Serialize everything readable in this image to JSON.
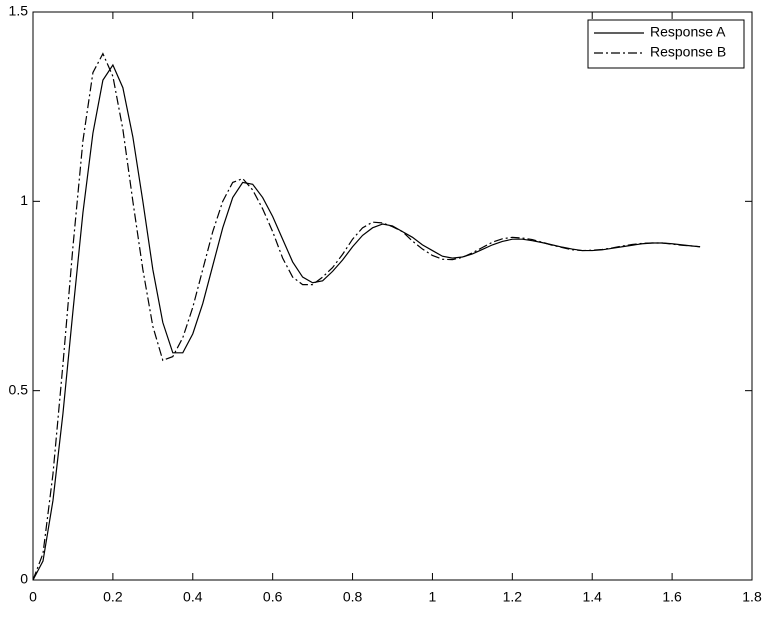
{
  "chart_data": {
    "type": "line",
    "x": [
      0,
      0.025,
      0.05,
      0.075,
      0.1,
      0.125,
      0.15,
      0.175,
      0.2,
      0.225,
      0.25,
      0.275,
      0.3,
      0.325,
      0.35,
      0.375,
      0.4,
      0.425,
      0.45,
      0.475,
      0.5,
      0.525,
      0.55,
      0.575,
      0.6,
      0.625,
      0.65,
      0.675,
      0.7,
      0.725,
      0.75,
      0.775,
      0.8,
      0.825,
      0.85,
      0.875,
      0.9,
      0.925,
      0.95,
      0.975,
      1,
      1.025,
      1.05,
      1.075,
      1.1,
      1.125,
      1.15,
      1.175,
      1.2,
      1.225,
      1.25,
      1.275,
      1.3,
      1.325,
      1.35,
      1.375,
      1.4,
      1.425,
      1.45,
      1.475,
      1.5,
      1.525,
      1.55,
      1.575,
      1.6,
      1.625,
      1.65,
      1.67
    ],
    "series": [
      {
        "name": "Response A",
        "color": "#000000",
        "linestyle": "solid",
        "values": [
          0,
          0.05,
          0.21,
          0.44,
          0.71,
          0.97,
          1.18,
          1.32,
          1.36,
          1.3,
          1.17,
          1.0,
          0.82,
          0.68,
          0.6,
          0.6,
          0.65,
          0.73,
          0.83,
          0.93,
          1.01,
          1.05,
          1.045,
          1.01,
          0.96,
          0.9,
          0.84,
          0.8,
          0.785,
          0.79,
          0.815,
          0.845,
          0.88,
          0.91,
          0.93,
          0.94,
          0.935,
          0.92,
          0.905,
          0.885,
          0.87,
          0.855,
          0.85,
          0.853,
          0.861,
          0.873,
          0.885,
          0.894,
          0.9,
          0.9,
          0.896,
          0.891,
          0.885,
          0.879,
          0.874,
          0.87,
          0.87,
          0.872,
          0.876,
          0.88,
          0.884,
          0.888,
          0.89,
          0.89,
          0.888,
          0.885,
          0.882,
          0.88
        ]
      },
      {
        "name": "Response B",
        "color": "#000000",
        "linestyle": "dashdot",
        "values": [
          0,
          0.07,
          0.28,
          0.57,
          0.88,
          1.16,
          1.34,
          1.39,
          1.33,
          1.19,
          1.0,
          0.82,
          0.67,
          0.58,
          0.59,
          0.64,
          0.72,
          0.82,
          0.92,
          1.0,
          1.05,
          1.06,
          1.03,
          0.98,
          0.92,
          0.85,
          0.8,
          0.78,
          0.78,
          0.8,
          0.825,
          0.86,
          0.9,
          0.93,
          0.945,
          0.943,
          0.933,
          0.92,
          0.895,
          0.874,
          0.857,
          0.847,
          0.846,
          0.852,
          0.864,
          0.878,
          0.892,
          0.901,
          0.905,
          0.903,
          0.899,
          0.892,
          0.884,
          0.878,
          0.872,
          0.87,
          0.871,
          0.873,
          0.877,
          0.882,
          0.886,
          0.889,
          0.89,
          0.89,
          0.887,
          0.884,
          0.882,
          0.88
        ]
      }
    ],
    "xlim": [
      0,
      1.8
    ],
    "xticks": [
      0,
      0.2,
      0.4,
      0.6,
      0.8,
      1,
      1.2,
      1.4,
      1.6,
      1.8
    ],
    "ylim": [
      0,
      1.5
    ],
    "yticks": [
      0,
      0.5,
      1,
      1.5
    ],
    "grid": false,
    "legend": "top-right"
  }
}
